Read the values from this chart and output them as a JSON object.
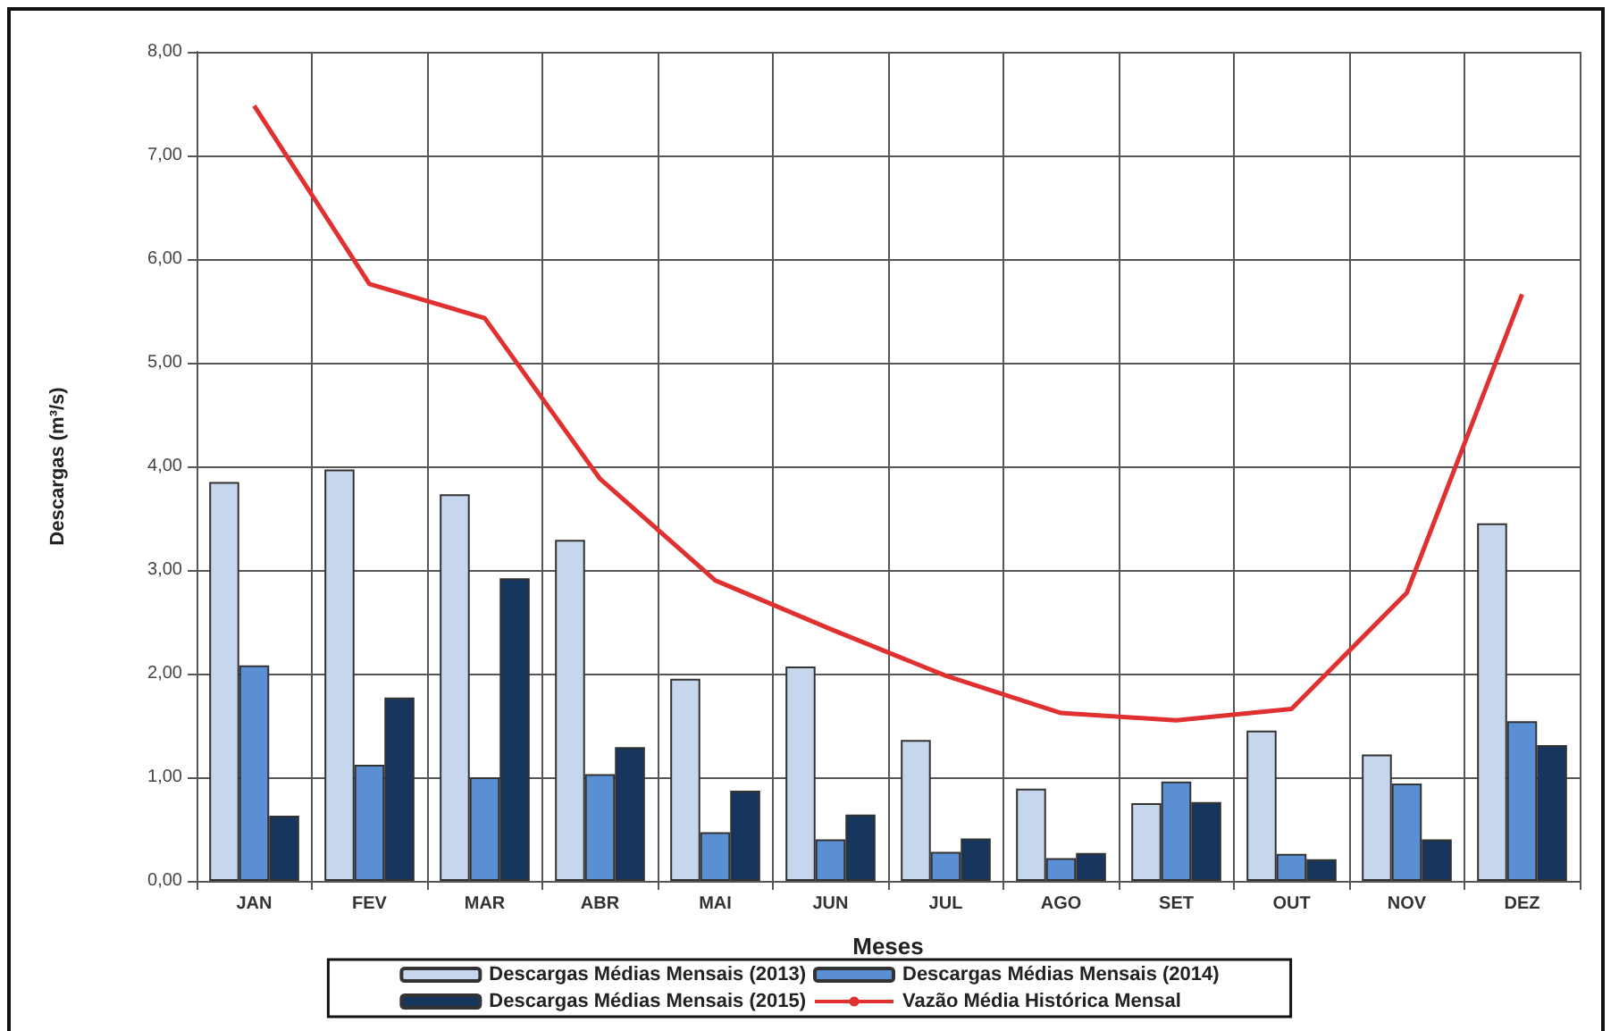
{
  "chart_data": {
    "type": "bar",
    "xlabel": "Meses",
    "ylabel": "Descargas (m³/s)",
    "categories": [
      "JAN",
      "FEV",
      "MAR",
      "ABR",
      "MAI",
      "JUN",
      "JUL",
      "AGO",
      "SET",
      "OUT",
      "NOV",
      "DEZ"
    ],
    "series": [
      {
        "name": "Descargas Médias Mensais (2013)",
        "color": "#c6d6ec",
        "values": [
          3.85,
          3.97,
          3.73,
          3.29,
          1.95,
          2.07,
          1.36,
          0.89,
          0.75,
          1.45,
          1.22,
          3.45
        ]
      },
      {
        "name": "Descargas Médias Mensais (2014)",
        "color": "#5b8fd4",
        "values": [
          2.08,
          1.12,
          1.0,
          1.03,
          0.47,
          0.4,
          0.28,
          0.22,
          0.96,
          0.26,
          0.94,
          1.54
        ]
      },
      {
        "name": "Descargas Médias Mensais (2015)",
        "color": "#17365d",
        "values": [
          0.63,
          1.77,
          2.92,
          1.29,
          0.87,
          0.64,
          0.41,
          0.27,
          0.76,
          0.21,
          0.4,
          1.31
        ]
      },
      {
        "name": "Vazão Média Histórica Mensal",
        "type": "line",
        "color": "#e03030",
        "values": [
          7.48,
          5.76,
          5.43,
          3.88,
          2.9,
          2.43,
          1.98,
          1.62,
          1.55,
          1.66,
          2.78,
          5.66
        ]
      }
    ],
    "ylim": [
      0,
      8
    ],
    "yticks": [
      {
        "value": 0,
        "label": "0,00"
      },
      {
        "value": 1,
        "label": "1,00"
      },
      {
        "value": 2,
        "label": "2,00"
      },
      {
        "value": 3,
        "label": "3,00"
      },
      {
        "value": 4,
        "label": "4,00"
      },
      {
        "value": 5,
        "label": "5,00"
      },
      {
        "value": 6,
        "label": "6,00"
      },
      {
        "value": 7,
        "label": "7,00"
      },
      {
        "value": 8,
        "label": "8,00"
      }
    ],
    "grid": true,
    "legend": "bottom",
    "marker": "none",
    "line_style": "solid"
  }
}
